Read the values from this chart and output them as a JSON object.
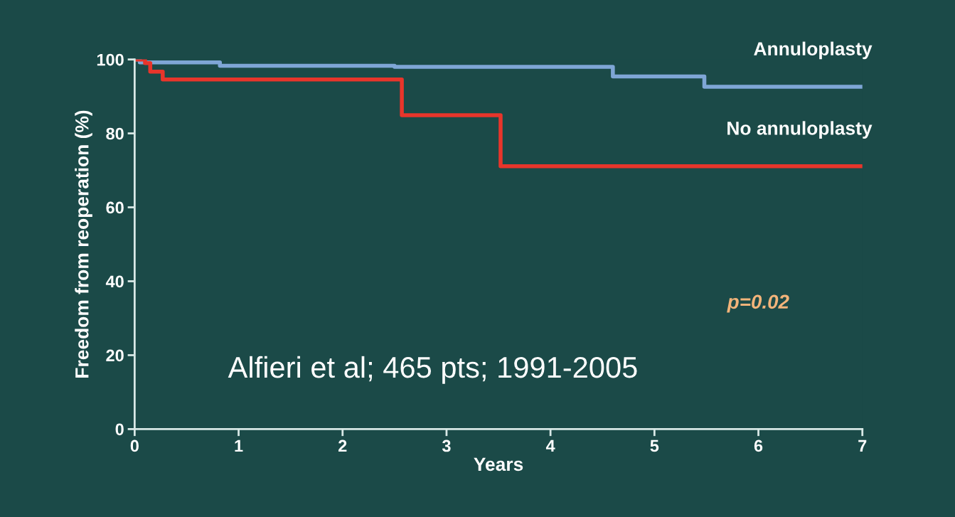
{
  "chart_data": {
    "type": "step",
    "xlabel": "Years",
    "ylabel": "Freedom from reoperation (%)",
    "series": [
      {
        "name": "Annuloplasty",
        "color": "#7fa6d6",
        "x": [
          0,
          0.05,
          0.82,
          2.5,
          4.6,
          5.48,
          7
        ],
        "values": [
          100,
          99.2,
          98.3,
          98.0,
          95.4,
          92.6,
          92.6
        ]
      },
      {
        "name": "No annuloplasty",
        "color": "#e8352b",
        "x": [
          0,
          0.1,
          0.15,
          0.27,
          2.57,
          3.52,
          7
        ],
        "values": [
          100,
          99,
          96.7,
          94.6,
          84.9,
          71.1,
          71.1
        ]
      }
    ],
    "xlim": [
      0,
      7
    ],
    "xticks": [
      0,
      1,
      2,
      3,
      4,
      5,
      6,
      7
    ],
    "ylim": [
      0,
      100
    ],
    "yticks": [
      0,
      20,
      40,
      60,
      80,
      100
    ],
    "grid": false,
    "legend": false,
    "annotations": [
      "p=0.02",
      "Alfieri et al; 465 pts; 1991-2005"
    ]
  }
}
